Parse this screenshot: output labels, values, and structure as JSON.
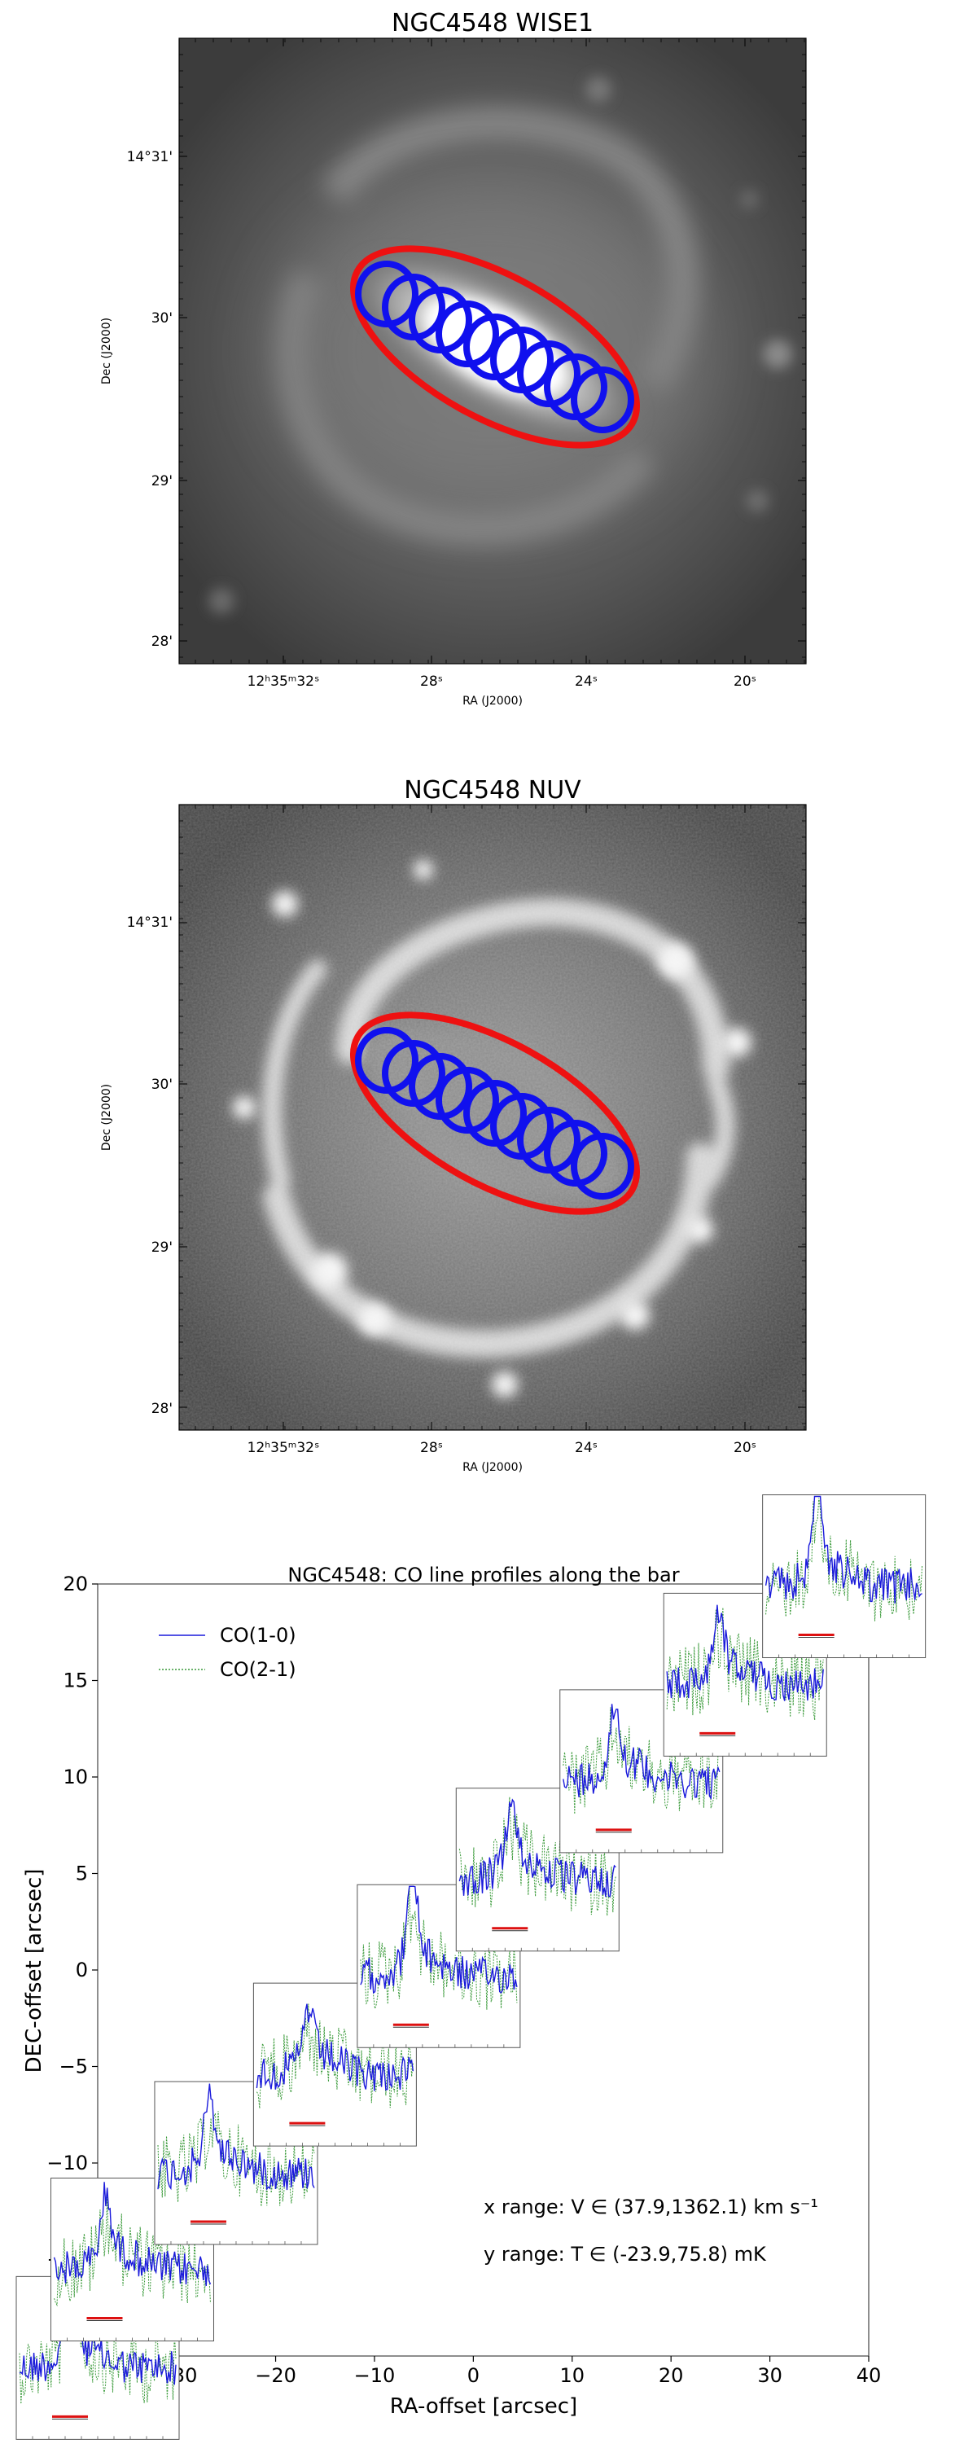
{
  "panel_wise": {
    "title": "NGC4548    WISE1",
    "xlabel": "RA (J2000)",
    "ylabel": "Dec (J2000)",
    "xticks": [
      "12ʰ35ᵐ32ˢ",
      "28ˢ",
      "24ˢ",
      "20ˢ"
    ],
    "yticks": [
      "14°31'",
      "30'",
      "29'",
      "28'"
    ]
  },
  "panel_nuv": {
    "title": "NGC4548    NUV",
    "xlabel": "RA (J2000)",
    "ylabel": "Dec (J2000)",
    "xticks": [
      "12ʰ35ᵐ32ˢ",
      "28ˢ",
      "24ˢ",
      "20ˢ"
    ],
    "yticks": [
      "14°31'",
      "30'",
      "29'",
      "28'"
    ]
  },
  "overlay_colors": {
    "ellipse": "#ee1111",
    "beams": "#1010ee"
  },
  "chart_data": {
    "type": "line",
    "title": "NGC4548: CO line profiles along the bar",
    "xlabel": "RA-offset [arcsec]",
    "ylabel": "DEC-offset [arcsec]",
    "xlim": [
      -38,
      40
    ],
    "ylim": [
      -20,
      20
    ],
    "xticks": [
      -30,
      -20,
      -10,
      0,
      10,
      20,
      30,
      40
    ],
    "yticks": [
      -15,
      -10,
      -5,
      0,
      5,
      10,
      15,
      20
    ],
    "xtick_labels": [
      "−30",
      "−20",
      "−10",
      "0",
      "10",
      "20",
      "30",
      "40"
    ],
    "ytick_labels": [
      "−15",
      "−10",
      "−5",
      "0",
      "5",
      "10",
      "15",
      "20"
    ],
    "legend": [
      "CO(1-0)",
      "CO(2-1)"
    ],
    "legend_placement": "upper-left",
    "series_colors": {
      "co10": "#1a1adb",
      "co21": "#3a9a3a",
      "marker": "#dd1111"
    },
    "annotation_x": "x range: V ∈ (37.9,1362.1) km s⁻¹",
    "annotation_y": "y range: T ∈ (-23.9,75.8) mK",
    "x_range_kms": [
      37.9,
      1362.1
    ],
    "y_range_mK": [
      -23.9,
      75.8
    ],
    "spectra_positions": [
      {
        "ra": -39.5,
        "dec": -20.1
      },
      {
        "ra": -34.5,
        "dec": -15.0
      },
      {
        "ra": -24.0,
        "dec": -10.0
      },
      {
        "ra": -14.0,
        "dec": -4.9
      },
      {
        "ra": -3.5,
        "dec": 0.2
      },
      {
        "ra": 6.5,
        "dec": 5.2
      },
      {
        "ra": 17.0,
        "dec": 10.3
      },
      {
        "ra": 27.5,
        "dec": 15.3
      },
      {
        "ra": 37.5,
        "dec": 20.4
      }
    ]
  }
}
